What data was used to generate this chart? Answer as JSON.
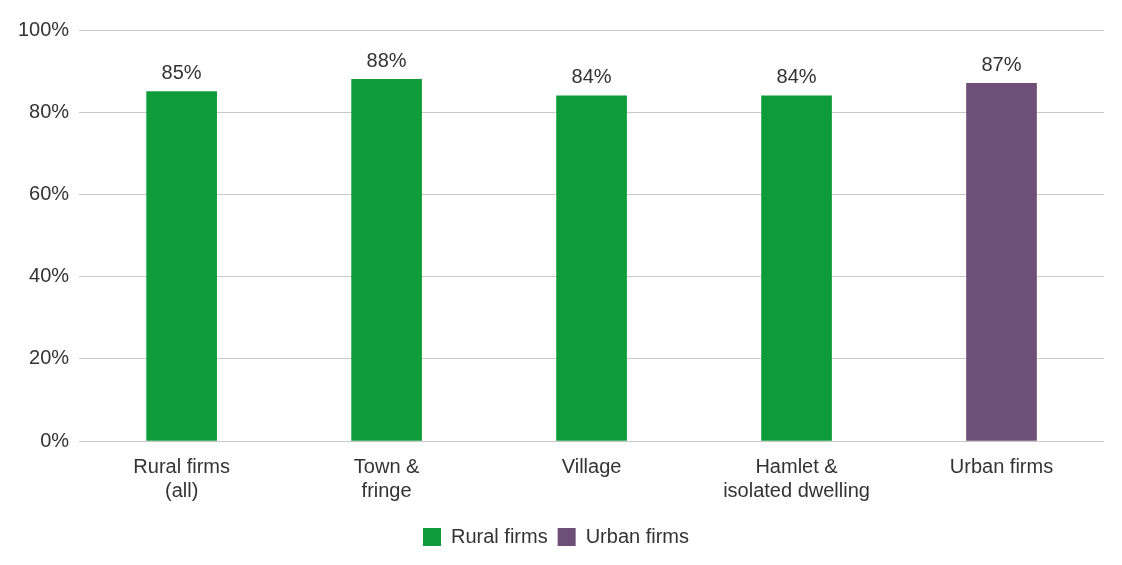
{
  "chart_data": {
    "type": "bar",
    "categories": [
      "Rural firms\n(all)",
      "Town &\nfringe",
      "Village",
      "Hamlet &\nisolated dwelling",
      "Urban firms"
    ],
    "series": [
      {
        "name": "Rural firms",
        "color": "#0e9c3a",
        "values": [
          85,
          88,
          84,
          84,
          null
        ],
        "value_labels": [
          "85%",
          "88%",
          "84%",
          "84%",
          null
        ]
      },
      {
        "name": "Urban firms",
        "color": "#6e4f78",
        "values": [
          null,
          null,
          null,
          null,
          87
        ],
        "value_labels": [
          null,
          null,
          null,
          null,
          "87%"
        ]
      }
    ],
    "ylim": [
      0,
      100
    ],
    "yticks": [
      {
        "value": 0,
        "label": "0%"
      },
      {
        "value": 20,
        "label": "20%"
      },
      {
        "value": 40,
        "label": "40%"
      },
      {
        "value": 60,
        "label": "60%"
      },
      {
        "value": 80,
        "label": "80%"
      },
      {
        "value": 100,
        "label": "100%"
      }
    ],
    "grid": "y",
    "legend": "bottom"
  }
}
